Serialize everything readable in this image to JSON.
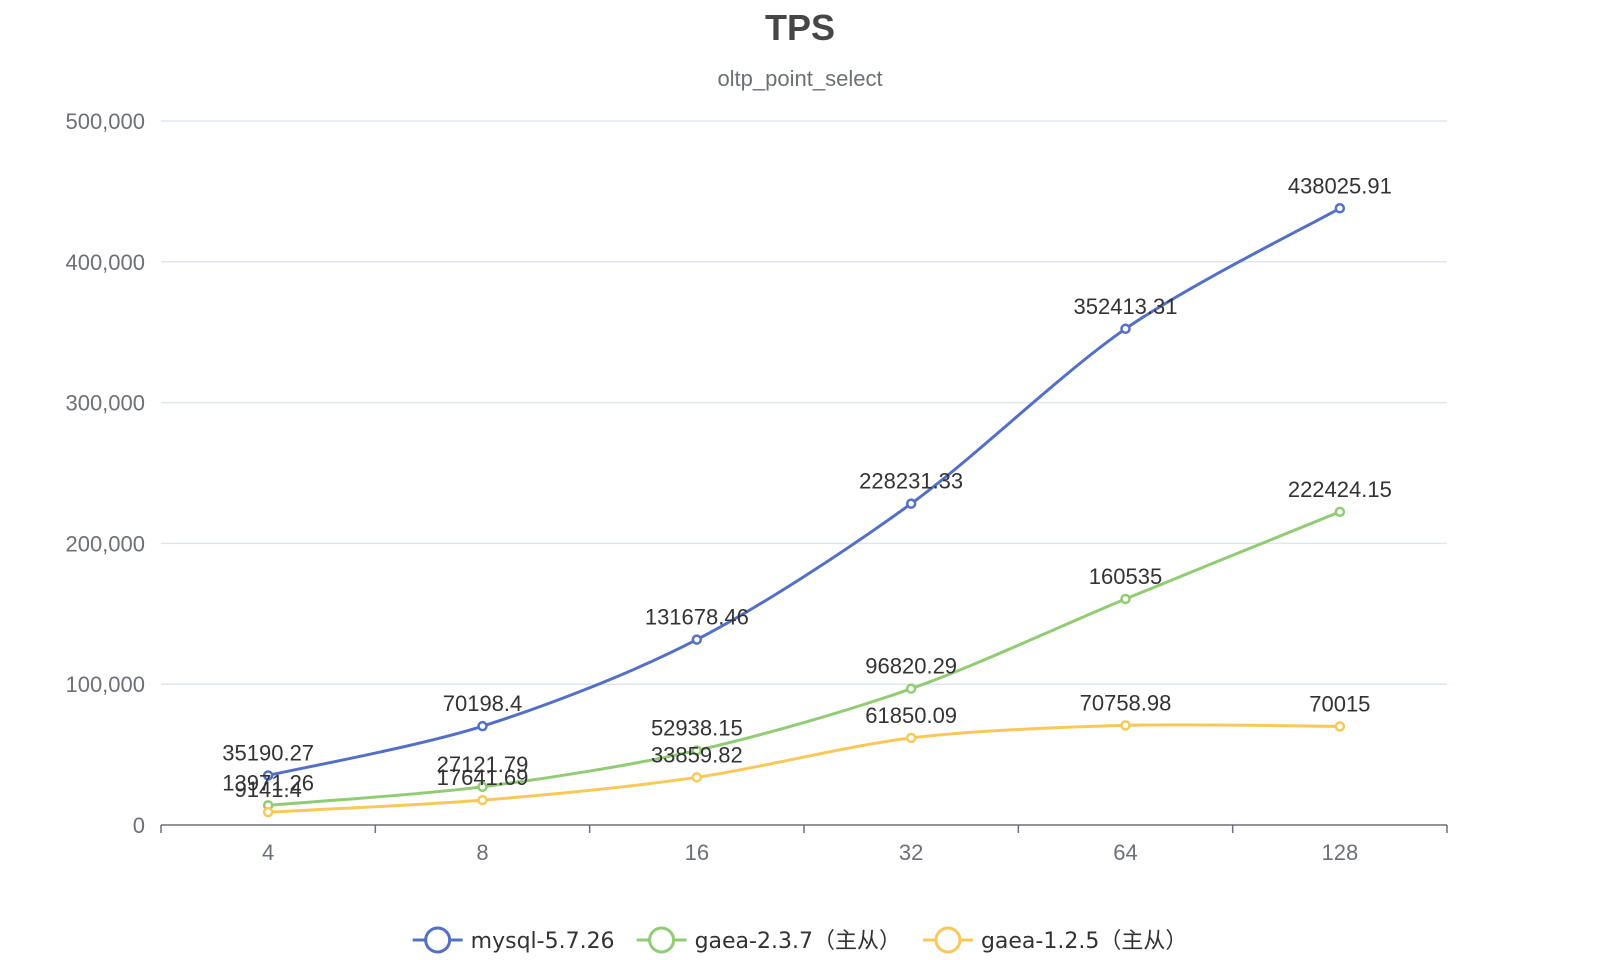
{
  "chart_data": {
    "type": "line",
    "title": "TPS",
    "subtitle": "oltp_point_select",
    "xlabel": "",
    "ylabel": "",
    "categories": [
      "4",
      "8",
      "16",
      "32",
      "64",
      "128"
    ],
    "ylim": [
      0,
      500000
    ],
    "yticks": [
      0,
      100000,
      200000,
      300000,
      400000,
      500000
    ],
    "ytick_labels": [
      "0",
      "100,000",
      "200,000",
      "300,000",
      "400,000",
      "500,000"
    ],
    "grid": true,
    "legend_position": "bottom-center",
    "series": [
      {
        "name": "mysql-5.7.26",
        "color": "#5470c6",
        "values": [
          35190.27,
          70198.4,
          131678.46,
          228231.33,
          352413.31,
          438025.91
        ],
        "labels": [
          "35190.27",
          "70198.4",
          "131678.46",
          "228231.33",
          "352413.31",
          "438025.91"
        ]
      },
      {
        "name": "gaea-2.3.7（主从）",
        "color": "#91cc75",
        "values": [
          13971.26,
          27121.79,
          52938.15,
          96820.29,
          160535,
          222424.15
        ],
        "labels": [
          "13971.26",
          "27121.79",
          "52938.15",
          "96820.29",
          "160535",
          "222424.15"
        ]
      },
      {
        "name": "gaea-1.2.5（主从）",
        "color": "#fac858",
        "values": [
          9141.4,
          17641.69,
          33859.82,
          61850.09,
          70758.98,
          70015
        ],
        "labels": [
          "9141.4",
          "17641.69",
          "33859.82",
          "61850.09",
          "70758.98",
          "70015"
        ]
      }
    ]
  }
}
